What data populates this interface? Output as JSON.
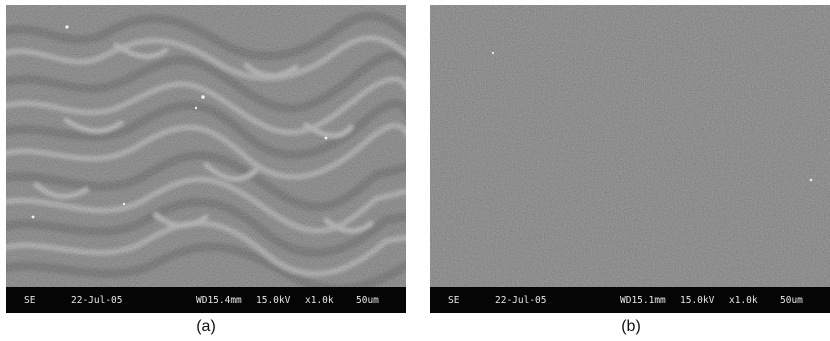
{
  "panels": [
    {
      "caption": "(a)",
      "databar": {
        "mode": "SE",
        "date": "22-Jul-05",
        "wd": "WD15.4mm",
        "kv": "15.0kV",
        "mag": "x1.0k",
        "scale": "50um"
      }
    },
    {
      "caption": "(b)",
      "databar": {
        "mode": "SE",
        "date": "22-Jul-05",
        "wd": "WD15.1mm",
        "kv": "15.0kV",
        "mag": "x1.0k",
        "scale": "50um"
      }
    }
  ]
}
